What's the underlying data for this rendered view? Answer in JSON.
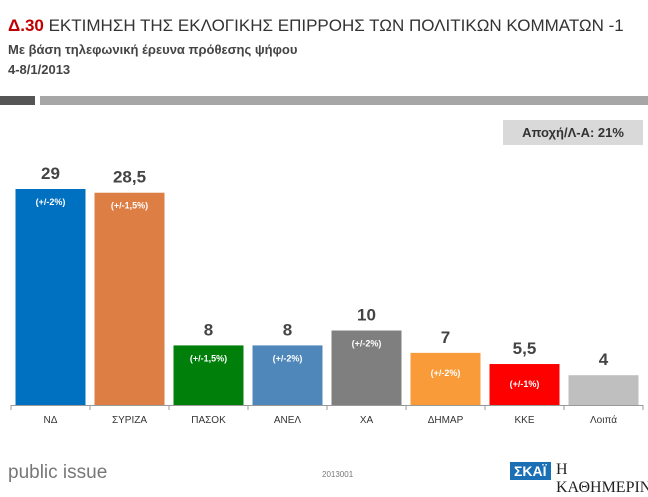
{
  "header": {
    "number": "Δ.30",
    "title": "ΕΚΤΙΜΗΣΗ ΤΗΣ ΕΚΛΟΓΙΚΗΣ ΕΠΙΡΡΟΗΣ ΤΩΝ ΠΟΛΙΤΙΚΩΝ ΚΟΜΜΑΤΩΝ -1",
    "subtitle": "Με βάση τηλεφωνική έρευνα πρόθεσης ψήφου",
    "date": "4-8/1/2013"
  },
  "badge": "Αποχή/Λ-Α: 21%",
  "footer": {
    "brand": "public issue",
    "code": "2013001",
    "logo1": "ΣΚΑΪ",
    "logo2": "Η ΚΑΘΗΜΕΡΙΝΗ"
  },
  "chart_data": {
    "type": "bar",
    "categories": [
      "ΝΔ",
      "ΣΥΡΙΖΑ",
      "ΠΑΣΟΚ",
      "ΑΝΕΛ",
      "ΧΑ",
      "ΔΗΜΑΡ",
      "ΚΚΕ",
      "Λοιπά"
    ],
    "values": [
      29,
      28.5,
      8,
      8,
      10,
      7,
      5.5,
      4
    ],
    "value_labels": [
      "29",
      "28,5",
      "8",
      "8",
      "10",
      "7",
      "5,5",
      "4"
    ],
    "margins": [
      "(+/-2%)",
      "(+/-1,5%)",
      "(+/-1,5%)",
      "(+/-2%)",
      "(+/-2%)",
      "(+/-2%)",
      "(+/-1%)",
      ""
    ],
    "colors": [
      "#0070c0",
      "#dd7e45",
      "#00800a",
      "#5087bb",
      "#7f7f7f",
      "#f99b38",
      "#ff0000",
      "#bfbfbf"
    ],
    "ylim": [
      0,
      30
    ],
    "grid": false,
    "legend": "none"
  }
}
